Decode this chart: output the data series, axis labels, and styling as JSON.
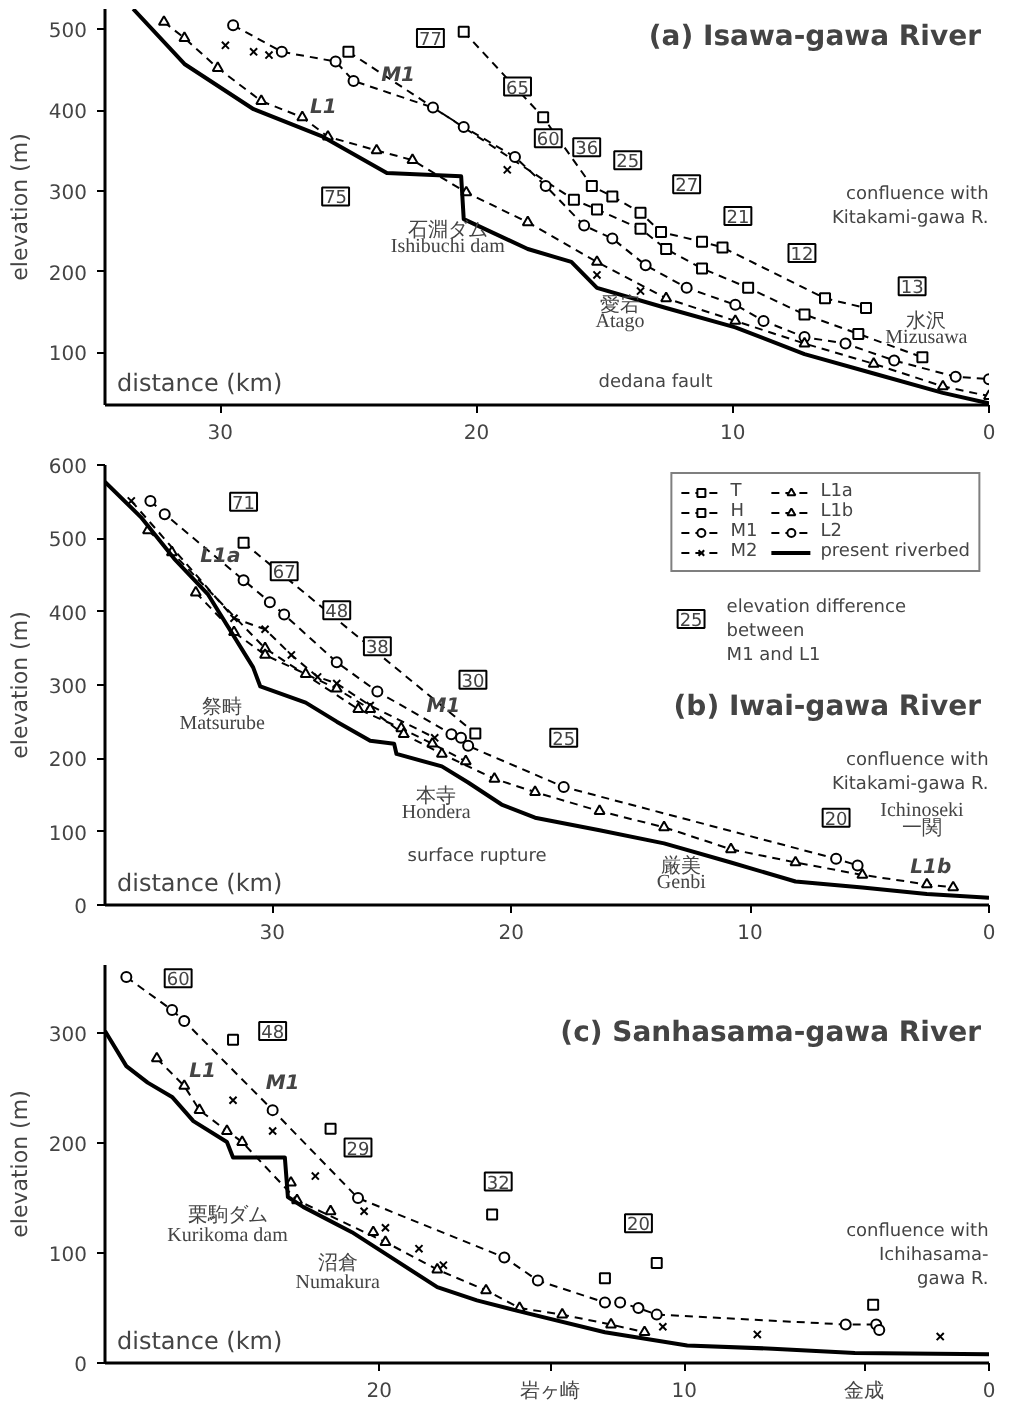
{
  "chart_data": [
    {
      "type": "line",
      "title": "(a) Isawa-gawa River",
      "xlabel": "distance (km)",
      "ylabel": "elevation (m)",
      "xlim": [
        34.5,
        0
      ],
      "ylim": [
        35,
        525
      ],
      "xticks": [
        0,
        10,
        20,
        30
      ],
      "yticks": [
        100,
        200,
        300,
        400,
        500
      ],
      "series": [
        {
          "color": "#000000",
          "marker": "square",
          "line_style": "dashed",
          "x": [
            20.5,
            17.4,
            15.5,
            14.7,
            13.6,
            12.8,
            11.2,
            10.4,
            6.4,
            4.8
          ],
          "values": [
            497,
            391,
            306,
            293,
            273,
            249,
            237,
            230,
            167,
            155
          ]
        },
        {
          "color": "#000000",
          "marker": "square",
          "line_style": "dashed",
          "x": [
            25.0,
            16.2,
            15.3,
            13.6,
            12.6,
            11.2,
            9.4,
            7.2,
            5.1,
            2.6
          ],
          "values": [
            472,
            289,
            277,
            253,
            228,
            204,
            180,
            147,
            123,
            94
          ]
        },
        {
          "color": "#000000",
          "marker": "circle",
          "line_style": "dashed",
          "x": [
            29.5,
            27.6,
            25.5,
            24.8,
            21.7,
            20.5,
            18.5,
            17.3,
            15.8,
            14.7,
            13.4,
            11.8,
            9.9,
            8.8,
            7.2,
            5.6,
            3.7,
            1.3,
            0
          ],
          "values": [
            505,
            472,
            460,
            436,
            403,
            379,
            342,
            306,
            257,
            241,
            208,
            180,
            159,
            139,
            119,
            111,
            90,
            70,
            67
          ]
        },
        {
          "type": "scatter",
          "color": "#000000",
          "marker": "cross",
          "x": [
            29.8,
            28.7,
            28.1,
            18.8,
            15.3,
            13.6
          ],
          "values": [
            480,
            472,
            468,
            326,
            196,
            176
          ]
        },
        {
          "color": "#000000",
          "marker": "triangle",
          "line_style": "dashed",
          "x": [
            32.2,
            31.4,
            30.1,
            28.4,
            26.8,
            25.8,
            23.9,
            22.5,
            20.4,
            18.0,
            15.3,
            12.6,
            9.9,
            7.2,
            4.5,
            1.8,
            0
          ],
          "values": [
            509,
            489,
            452,
            411,
            391,
            367,
            350,
            338,
            298,
            261,
            212,
            167,
            139,
            111,
            86,
            58,
            46
          ]
        },
        {
          "color": "#000000",
          "marker": "none",
          "line_style": "solid",
          "x": [
            33.4,
            31.4,
            28.7,
            26.0,
            23.5,
            20.6,
            20.5,
            18.0,
            16.3,
            15.3,
            12.6,
            9.9,
            7.2,
            4.5,
            1.8,
            0
          ],
          "values": [
            525,
            457,
            401,
            367,
            322,
            318,
            265,
            228,
            212,
            180,
            155,
            131,
            98,
            74,
            50,
            37
          ]
        }
      ],
      "annotations": [
        {
          "text": "77",
          "x": 21.8,
          "y": 489
        },
        {
          "text": "65",
          "x": 18.4,
          "y": 429
        },
        {
          "text": "60",
          "x": 17.2,
          "y": 365
        },
        {
          "text": "36",
          "x": 15.7,
          "y": 354
        },
        {
          "text": "25",
          "x": 14.1,
          "y": 338
        },
        {
          "text": "27",
          "x": 11.8,
          "y": 308
        },
        {
          "text": "21",
          "x": 9.8,
          "y": 269
        },
        {
          "text": "12",
          "x": 7.3,
          "y": 223
        },
        {
          "text": "13",
          "x": 3.0,
          "y": 182
        },
        {
          "text": "75",
          "x": 25.5,
          "y": 293
        },
        "M1",
        "L1",
        "石淵ダム",
        "Ishibuchi dam",
        "愛宕",
        "Atago",
        "水沢",
        "Mizusawa",
        "dedana fault",
        "confluence with\nKitakami-gawa R."
      ]
    },
    {
      "type": "line",
      "title": "(b) Iwai-gawa River",
      "xlabel": "distance (km)",
      "ylabel": "elevation (m)",
      "xlim": [
        37,
        0
      ],
      "ylim": [
        0,
        600
      ],
      "xticks": [
        0,
        10,
        20,
        30
      ],
      "yticks": [
        0,
        100,
        200,
        300,
        400,
        500,
        600
      ],
      "legend": "top right",
      "series": [
        {
          "name": "T",
          "color": "#000000",
          "marker": "square",
          "line_style": "dashed"
        },
        {
          "name": "H",
          "color": "#000000",
          "marker": "square",
          "line_style": "dashed",
          "x": [
            31.2,
            21.5
          ],
          "values": [
            494,
            234
          ]
        },
        {
          "name": "M1",
          "color": "#000000",
          "marker": "circle",
          "line_style": "dashed",
          "x": [
            35.1,
            34.5,
            31.2,
            30.1,
            29.5,
            27.3,
            25.6,
            22.5,
            22.1,
            21.8,
            17.8,
            6.4,
            5.5
          ],
          "values": [
            551,
            533,
            443,
            413,
            396,
            331,
            291,
            233,
            228,
            217,
            161,
            63,
            54
          ]
        },
        {
          "name": "M2",
          "color": "#000000",
          "marker": "cross",
          "line_style": "dashed",
          "x": [
            35.9,
            31.6,
            30.3,
            29.2,
            28.1,
            27.3,
            25.9,
            23.2
          ],
          "values": [
            551,
            391,
            376,
            341,
            311,
            302,
            272,
            228
          ]
        },
        {
          "name": "L1a",
          "color": "#000000",
          "marker": "triangle",
          "line_style": "dashed",
          "x": [
            35.2,
            34.2,
            30.3,
            26.4,
            24.6,
            23.3,
            21.9
          ],
          "values": [
            511,
            481,
            350,
            267,
            241,
            220,
            196
          ]
        },
        {
          "name": "L1b",
          "color": "#000000",
          "marker": "triangle",
          "line_style": "dashed",
          "x": [
            33.2,
            31.6,
            30.3,
            28.6,
            27.3,
            25.9,
            24.5,
            22.9,
            20.7,
            19.0,
            16.3,
            13.6,
            10.8,
            8.1,
            5.3,
            2.6,
            1.5
          ],
          "values": [
            426,
            372,
            341,
            315,
            295,
            267,
            233,
            206,
            172,
            154,
            128,
            106,
            76,
            58,
            41,
            28,
            24
          ]
        },
        {
          "name": "L2",
          "color": "#000000",
          "marker": "circle",
          "line_style": "dashed"
        },
        {
          "name": "present riverbed",
          "color": "#000000",
          "marker": "none",
          "line_style": "solid",
          "x": [
            37.0,
            35.5,
            34.1,
            32.7,
            30.8,
            30.5,
            28.6,
            27.3,
            25.9,
            24.9,
            24.8,
            22.9,
            21.8,
            20.4,
            19.0,
            16.3,
            13.6,
            10.8,
            8.1,
            5.3,
            2.6,
            0
          ],
          "values": [
            577,
            529,
            472,
            424,
            324,
            298,
            276,
            250,
            224,
            220,
            206,
            189,
            167,
            137,
            119,
            102,
            84,
            58,
            32,
            24,
            15,
            10
          ]
        }
      ],
      "annotations": [
        {
          "text": "71",
          "x": 31.2,
          "y": 550
        },
        {
          "text": "67",
          "x": 29.5,
          "y": 455
        },
        {
          "text": "48",
          "x": 27.3,
          "y": 402
        },
        {
          "text": "38",
          "x": 25.6,
          "y": 353
        },
        {
          "text": "30",
          "x": 21.6,
          "y": 307
        },
        {
          "text": "25",
          "x": 17.8,
          "y": 228
        },
        {
          "text": "20",
          "x": 6.4,
          "y": 119
        },
        "M1",
        "L1a",
        "L1b",
        "祭畤",
        "Matsurube",
        "本寺",
        "Hondera",
        "surface rupture",
        "厳美",
        "Genbi",
        "Ichinoseki",
        "一関",
        "confluence with\nKitakami-gawa R.",
        "25",
        "elevation difference\nbetween\nM1 and L1"
      ]
    },
    {
      "type": "line",
      "title": "(c) Sanhasama-gawa River",
      "xlabel": "distance (km)",
      "ylabel": "elevation (m)",
      "xlim": [
        29,
        0
      ],
      "ylim": [
        0,
        362
      ],
      "xticks": [
        0,
        {
          "value": 4.1,
          "label": "金成"
        },
        10,
        {
          "value": 14.4,
          "label": "岩ヶ崎"
        },
        20
      ],
      "yticks": [
        0,
        100,
        200,
        300
      ],
      "series": [
        {
          "type": "scatter",
          "color": "#000000",
          "marker": "square",
          "x": [
            16.3,
            10.9
          ],
          "values": [
            135,
            91
          ]
        },
        {
          "type": "scatter",
          "color": "#000000",
          "marker": "square",
          "x": [
            24.8,
            21.6,
            12.6,
            3.8
          ],
          "values": [
            294,
            213,
            77,
            53
          ]
        },
        {
          "color": "#000000",
          "marker": "circle",
          "line_style": "dashed",
          "x": [
            28.3,
            26.8,
            26.4,
            23.5,
            20.7,
            15.9,
            14.8,
            12.6,
            12.1,
            11.5,
            10.9,
            4.7,
            3.7,
            3.6
          ],
          "values": [
            351,
            321,
            311,
            230,
            150,
            96,
            75,
            55,
            55,
            50,
            44,
            35,
            35,
            30
          ]
        },
        {
          "type": "scatter",
          "color": "#000000",
          "marker": "cross",
          "x": [
            24.8,
            23.5,
            22.1,
            20.5,
            19.8,
            18.7,
            17.9,
            10.7,
            7.6,
            1.6
          ],
          "values": [
            239,
            211,
            170,
            138,
            123,
            104,
            89,
            33,
            26,
            24
          ]
        },
        {
          "color": "#000000",
          "marker": "triangle",
          "line_style": "dashed",
          "x": [
            27.3,
            26.4,
            25.9,
            25.0,
            24.5,
            22.7,
            19.8,
            18.1,
            16.5,
            15.4,
            14.0,
            12.4,
            11.3
          ],
          "values": [
            277,
            252,
            230,
            211,
            201,
            148,
            110,
            85,
            66,
            50,
            44,
            35,
            28
          ]
        },
        {
          "type": "scatter",
          "color": "#000000",
          "marker": "triangle",
          "x": [
            22.9,
            21.6,
            20.2
          ],
          "values": [
            164,
            138,
            119
          ]
        },
        {
          "color": "#000000",
          "marker": "none",
          "line_style": "solid",
          "x": [
            29.0,
            28.3,
            27.6,
            26.8,
            26.1,
            25.0,
            24.8,
            23.1,
            23.0,
            22.5,
            20.9,
            19.5,
            18.1,
            16.8,
            15.4,
            12.6,
            9.9,
            7.1,
            4.4,
            0
          ],
          "values": [
            302,
            270,
            255,
            242,
            220,
            201,
            187,
            187,
            151,
            142,
            119,
            94,
            69,
            57,
            47,
            28,
            16,
            13,
            9,
            8
          ]
        }
      ],
      "annotations": [
        {
          "text": "60",
          "x": 26.6,
          "y": 350
        },
        {
          "text": "48",
          "x": 23.5,
          "y": 302
        },
        {
          "text": "29",
          "x": 20.7,
          "y": 196
        },
        {
          "text": "32",
          "x": 16.1,
          "y": 165
        },
        {
          "text": "20",
          "x": 11.5,
          "y": 127
        },
        "M1",
        "L1",
        "栗駒ダム",
        "Kurikoma dam",
        "沼倉",
        "Numakura",
        "confluence with\nIchihasama-\ngawa R."
      ]
    }
  ]
}
